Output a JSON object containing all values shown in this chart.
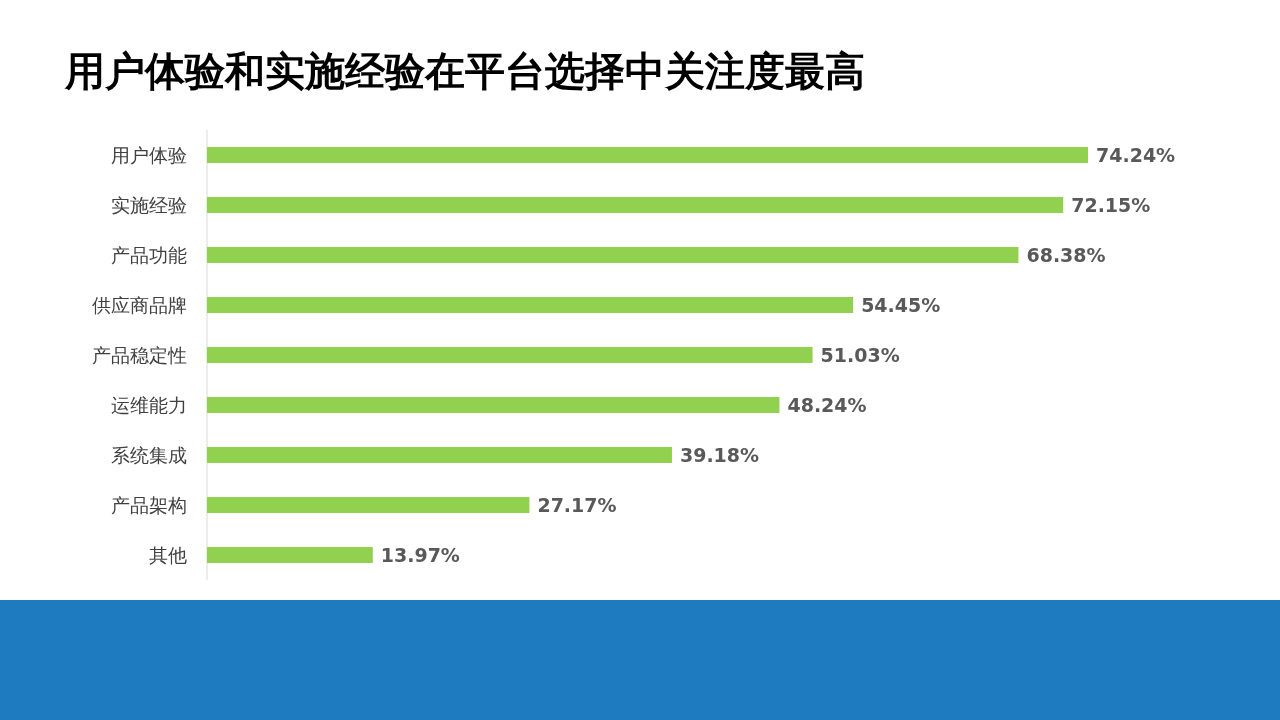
{
  "chart_data": {
    "type": "bar",
    "orientation": "horizontal",
    "title": "用户体验和实施经验在平台选择中关注度最高",
    "categories": [
      "用户体验",
      "实施经验",
      "产品功能",
      "供应商品牌",
      "产品稳定性",
      "运维能力",
      "系统集成",
      "产品架构",
      "其他"
    ],
    "values": [
      74.24,
      72.15,
      68.38,
      54.45,
      51.03,
      48.24,
      39.18,
      27.17,
      13.97
    ],
    "value_labels": [
      "74.24%",
      "72.15%",
      "68.38%",
      "54.45%",
      "51.03%",
      "48.24%",
      "39.18%",
      "27.17%",
      "13.97%"
    ],
    "color": "#92d050"
  }
}
